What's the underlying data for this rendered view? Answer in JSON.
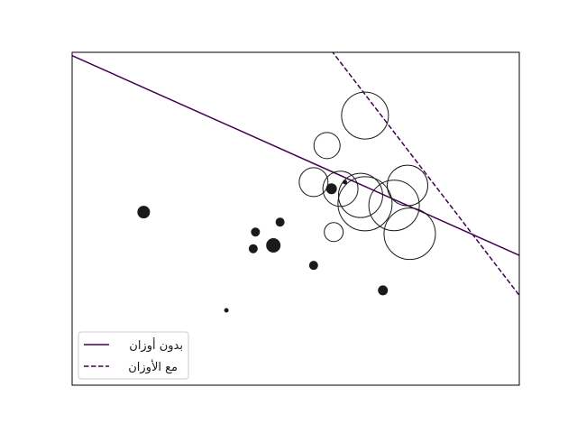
{
  "chart_data": {
    "type": "scatter",
    "title": "",
    "xlabel": "",
    "ylabel": "",
    "xlim": [
      0,
      10
    ],
    "ylim": [
      0,
      10
    ],
    "grid": false,
    "ticks_visible": false,
    "legend_position": "lower-left",
    "series": [
      {
        "kind": "points",
        "style": "filled",
        "color": "#1a1a1a",
        "points": [
          {
            "x": 1.6,
            "y": 5.2,
            "size": 1.3
          },
          {
            "x": 4.5,
            "y": 4.2,
            "size": 1.5
          },
          {
            "x": 4.1,
            "y": 4.6,
            "size": 0.9
          },
          {
            "x": 4.05,
            "y": 4.1,
            "size": 0.9
          },
          {
            "x": 4.65,
            "y": 4.9,
            "size": 0.9
          },
          {
            "x": 5.4,
            "y": 3.6,
            "size": 0.9
          },
          {
            "x": 5.8,
            "y": 5.9,
            "size": 1.1
          },
          {
            "x": 6.1,
            "y": 6.1,
            "size": 0.4
          },
          {
            "x": 6.95,
            "y": 2.85,
            "size": 1.0
          },
          {
            "x": 3.45,
            "y": 2.25,
            "size": 0.4
          }
        ]
      },
      {
        "kind": "points",
        "style": "hollow",
        "color": "#1a1a1a",
        "points": [
          {
            "x": 6.55,
            "y": 8.1,
            "size": 5.2
          },
          {
            "x": 5.7,
            "y": 7.2,
            "size": 2.9
          },
          {
            "x": 5.4,
            "y": 6.1,
            "size": 3.2
          },
          {
            "x": 6.0,
            "y": 5.9,
            "size": 3.9
          },
          {
            "x": 6.45,
            "y": 5.7,
            "size": 4.9
          },
          {
            "x": 6.55,
            "y": 5.45,
            "size": 6.0
          },
          {
            "x": 7.5,
            "y": 6.0,
            "size": 4.5
          },
          {
            "x": 7.2,
            "y": 5.4,
            "size": 5.6
          },
          {
            "x": 7.55,
            "y": 4.55,
            "size": 5.7
          },
          {
            "x": 5.85,
            "y": 4.6,
            "size": 2.1
          }
        ]
      },
      {
        "kind": "line",
        "name": "بدون أوزان",
        "dash": "solid",
        "color": "#440154",
        "intercept": 9.9,
        "slope": -0.6
      },
      {
        "kind": "line",
        "name": "مع الأوزان",
        "dash": "dashed",
        "color": "#440154",
        "intercept": 20.2,
        "slope": -1.75
      }
    ]
  }
}
